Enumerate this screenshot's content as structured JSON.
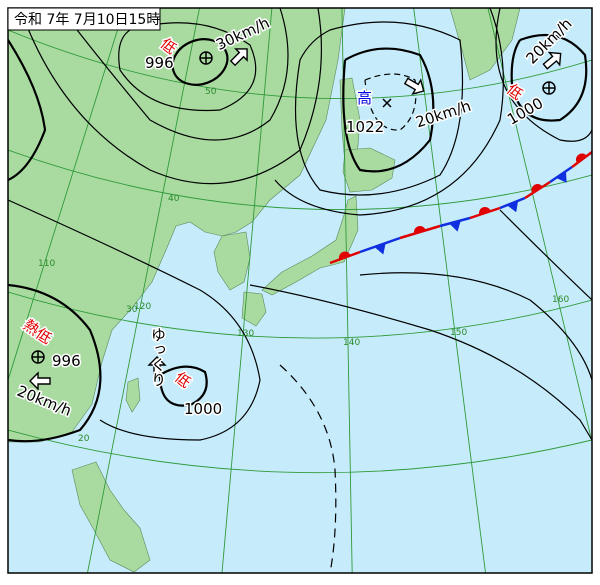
{
  "title": "令和 7年 7月10日15時",
  "systems": [
    {
      "kind": "低",
      "pressure": "996",
      "movement": "30km/h"
    },
    {
      "kind": "高",
      "pressure": "1022",
      "movement": "20km/h"
    },
    {
      "kind": "低",
      "pressure": "1000",
      "movement": "20km/h"
    },
    {
      "kind": "熱低",
      "pressure": "996",
      "movement": "20km/h"
    },
    {
      "kind": "低",
      "pressure": "1000",
      "movement": "ゆっくり"
    }
  ],
  "grid_labels": [
    "50",
    "40",
    "30",
    "20",
    "110",
    "120",
    "130",
    "140",
    "150",
    "160"
  ]
}
